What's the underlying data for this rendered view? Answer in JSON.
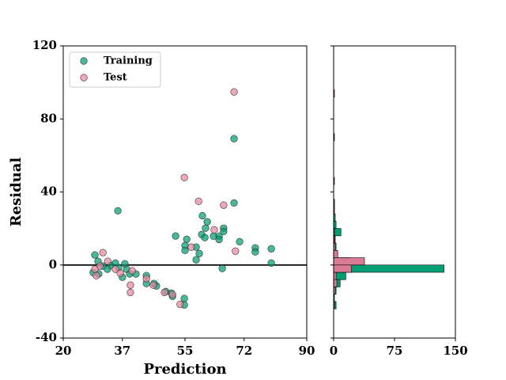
{
  "chart_data": [
    {
      "type": "scatter",
      "xlabel": "Prediction",
      "ylabel": "Residual",
      "xlim": [
        20,
        90
      ],
      "xticks": [
        20,
        37,
        55,
        72,
        90
      ],
      "ylim": [
        -40,
        120
      ],
      "yticks": [
        -40,
        0,
        40,
        80,
        120
      ],
      "hline": 0,
      "legend": "upper left",
      "series": [
        {
          "name": "Training",
          "color": "#009e73",
          "x": [
            35.7,
            69.1,
            69.1,
            52.3,
            55.5,
            55,
            55,
            58.2,
            60,
            61.4,
            60.9,
            59.8,
            60.7,
            63.2,
            64.8,
            64.8,
            66.1,
            66.1,
            70.7,
            75.2,
            75.2,
            79.8,
            79.8,
            59.1,
            58.2,
            65.7,
            54.8,
            54.8,
            51.4,
            49.5,
            46.8,
            43.9,
            43.9,
            40.9,
            38.2,
            37.7,
            37,
            29.1,
            30,
            31.4,
            33.6,
            35,
            28.6,
            30.2,
            32.7,
            35.9,
            46.1,
            39.1,
            51.1
          ],
          "values": [
            29.7,
            69.2,
            34,
            15.9,
            14.1,
            10.7,
            8,
            9.8,
            27,
            23.7,
            20.2,
            16.7,
            15,
            15.8,
            15.8,
            14,
            20.2,
            18.4,
            12.8,
            9.4,
            7.2,
            8.9,
            1.1,
            6.3,
            2.9,
            -1.9,
            -18.3,
            -21.9,
            -17.1,
            -14.5,
            -11.5,
            -5.8,
            -10.1,
            -4.9,
            -2.3,
            0.7,
            -6.7,
            5.5,
            2,
            -0.6,
            -0.2,
            1.1,
            -4.1,
            -4.9,
            -2.3,
            -1.5,
            -10.1,
            -4.9,
            -15.4
          ]
        },
        {
          "name": "Test",
          "color": "#e8879c",
          "x": [
            69.1,
            54.8,
            58.9,
            66.1,
            63.4,
            56.8,
            69.5,
            53.6,
            49.1,
            51.4,
            45.9,
            43.9,
            39.3,
            39.3,
            39.8,
            31.4,
            29.5,
            32.8,
            30.5,
            35,
            36.4,
            29.1
          ],
          "values": [
            94.8,
            47.9,
            34.9,
            32.8,
            19.3,
            9.8,
            7.6,
            -21.5,
            -15,
            -16.2,
            -11,
            -7.5,
            -11,
            -15,
            -3.2,
            6.8,
            -5.8,
            2,
            -0.6,
            -2.3,
            -4.5,
            -2.3
          ]
        }
      ]
    },
    {
      "type": "histogram",
      "orientation": "horizontal",
      "xlim": [
        0,
        150
      ],
      "xticks": [
        0,
        75,
        150
      ],
      "ylim": [
        -40,
        120
      ],
      "yticks": [
        -40,
        0,
        40,
        80,
        120
      ],
      "bins": [
        -24,
        -20,
        -16,
        -12,
        -8,
        -4,
        0,
        4,
        8,
        12,
        16,
        20,
        24,
        28,
        32,
        36,
        40,
        44,
        48,
        52,
        56,
        60,
        64,
        68,
        72,
        76,
        80,
        84,
        88,
        92,
        96
      ],
      "series": [
        {
          "color": "#009e73",
          "values": [
            3,
            1,
            3,
            8,
            15,
            136,
            20,
            5,
            3,
            2,
            9,
            3,
            2,
            1,
            1,
            0,
            0,
            0,
            0,
            0,
            0,
            0,
            0,
            1,
            0,
            0,
            0,
            0,
            0,
            0
          ]
        },
        {
          "color": "#d97b93",
          "values": [
            1,
            0,
            2,
            4,
            3,
            22,
            38,
            5,
            2,
            1,
            1,
            0,
            0,
            1,
            1,
            0,
            0,
            1,
            0,
            0,
            0,
            0,
            0,
            0,
            0,
            0,
            0,
            0,
            0,
            1
          ]
        }
      ]
    }
  ]
}
